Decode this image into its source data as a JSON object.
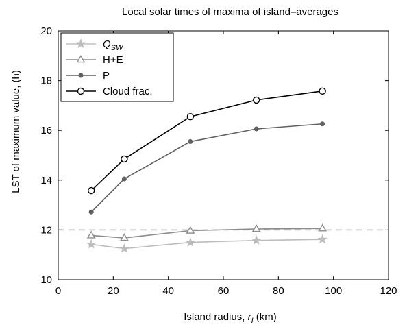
{
  "chart_data": {
    "type": "line",
    "title": "Local solar times of maxima of island–averages",
    "xlabel": "Island radius, ",
    "xlabel_symbol": "r",
    "xlabel_symbol_sub": "I",
    "xlabel_unit": " (km)",
    "ylabel": "LST of maximum value, (h)",
    "xlim": [
      0,
      120
    ],
    "ylim": [
      10,
      20
    ],
    "xticks": [
      0,
      20,
      40,
      60,
      80,
      100,
      120
    ],
    "yticks": [
      10,
      12,
      14,
      16,
      18,
      20
    ],
    "grid": false,
    "legend_position": "top-left",
    "reference_line": {
      "y": 12,
      "style": "dashed",
      "color": "#bfbfbf"
    },
    "x": [
      12,
      24,
      48,
      72,
      96
    ],
    "series": [
      {
        "name": "Q",
        "name_sub": "SW",
        "marker": "star",
        "color": "#bdbdbd",
        "values": [
          11.42,
          11.25,
          11.5,
          11.58,
          11.62
        ]
      },
      {
        "name": "H+E",
        "marker": "triangle",
        "color": "#8c8c8c",
        "values": [
          11.78,
          11.68,
          11.97,
          12.04,
          12.06
        ]
      },
      {
        "name": "P",
        "marker": "dot",
        "color": "#606060",
        "values": [
          12.72,
          14.05,
          15.55,
          16.06,
          16.26
        ]
      },
      {
        "name": "Cloud frac.",
        "marker": "circle",
        "color": "#000000",
        "values": [
          13.58,
          14.85,
          16.55,
          17.22,
          17.58
        ]
      }
    ]
  }
}
